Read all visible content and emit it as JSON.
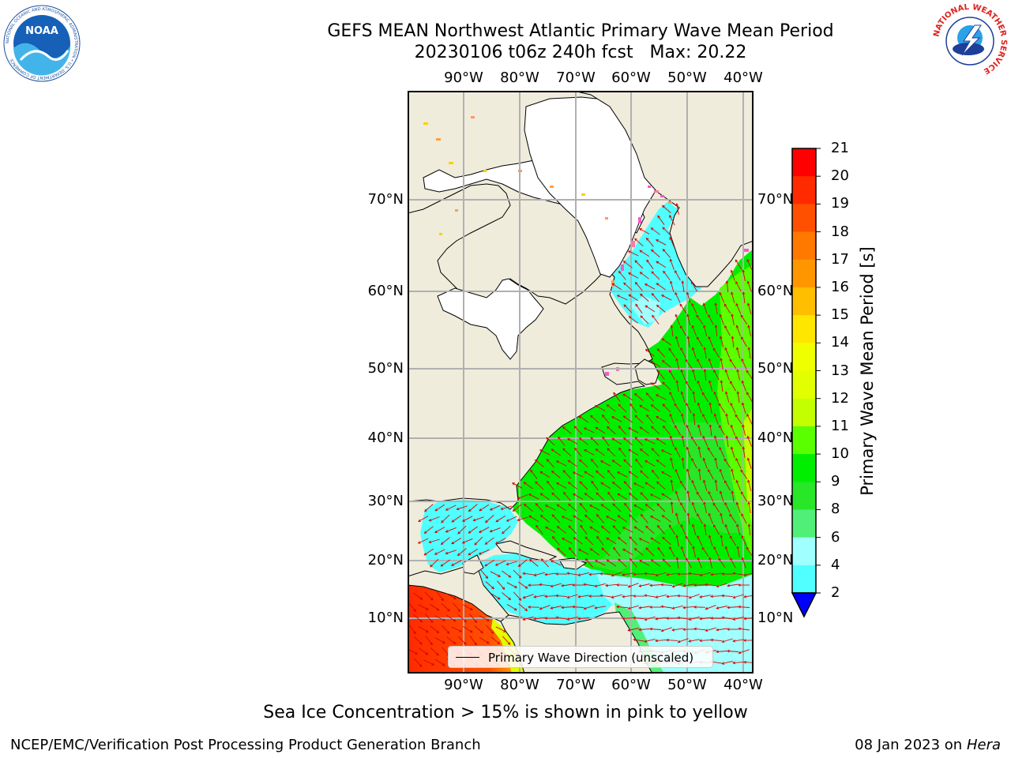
{
  "title": {
    "line1": "GEFS MEAN Northwest Atlantic Primary Wave Mean Period",
    "line2": "20230106 t06z 240h fcst   Max: 20.22"
  },
  "map": {
    "lon_labels": [
      "90°W",
      "80°W",
      "70°W",
      "60°W",
      "50°W",
      "40°W"
    ],
    "lat_labels": [
      "70°N",
      "60°N",
      "50°N",
      "40°N",
      "30°N",
      "20°N",
      "10°N"
    ],
    "land_color": "#efecdc",
    "ice_color": "#ffffff",
    "grid_color": "#b0b0b0",
    "arrow_color": "#dd0000"
  },
  "legend": {
    "label": "Primary Wave Direction (unscaled)"
  },
  "colorbar": {
    "title": "Primary Wave Mean Period [s]",
    "tick_labels": [
      "21",
      "20",
      "19",
      "18",
      "17",
      "16",
      "15",
      "14",
      "13",
      "12",
      "11",
      "10",
      "9",
      "8",
      "6",
      "4",
      "2"
    ],
    "colors": [
      "#ff0000",
      "#ff2a00",
      "#ff5000",
      "#ff7800",
      "#ff9600",
      "#ffbe00",
      "#ffe600",
      "#f0ff00",
      "#e1ff00",
      "#c3ff00",
      "#5aff00",
      "#00ef00",
      "#28e628",
      "#50f078",
      "#a0ffff",
      "#50ffff",
      "#00ffff",
      "#00c8ff",
      "#0064ff",
      "#0000ff"
    ]
  },
  "note": "Sea Ice Concentration > 15% is shown in pink to yellow",
  "footer": {
    "left": "NCEP/EMC/Verification Post Processing Product Generation Branch",
    "right_date": "08 Jan 2023 on",
    "right_host": "Hera"
  },
  "logos": {
    "noaa": {
      "text": "NOAA",
      "ring_text": "NATIONAL OCEANIC AND ATMOSPHERIC ADMINISTRATION • U.S. DEPARTMENT OF COMMERCE"
    },
    "nws": {
      "ring_text": "NATIONAL WEATHER SERVICE"
    }
  }
}
